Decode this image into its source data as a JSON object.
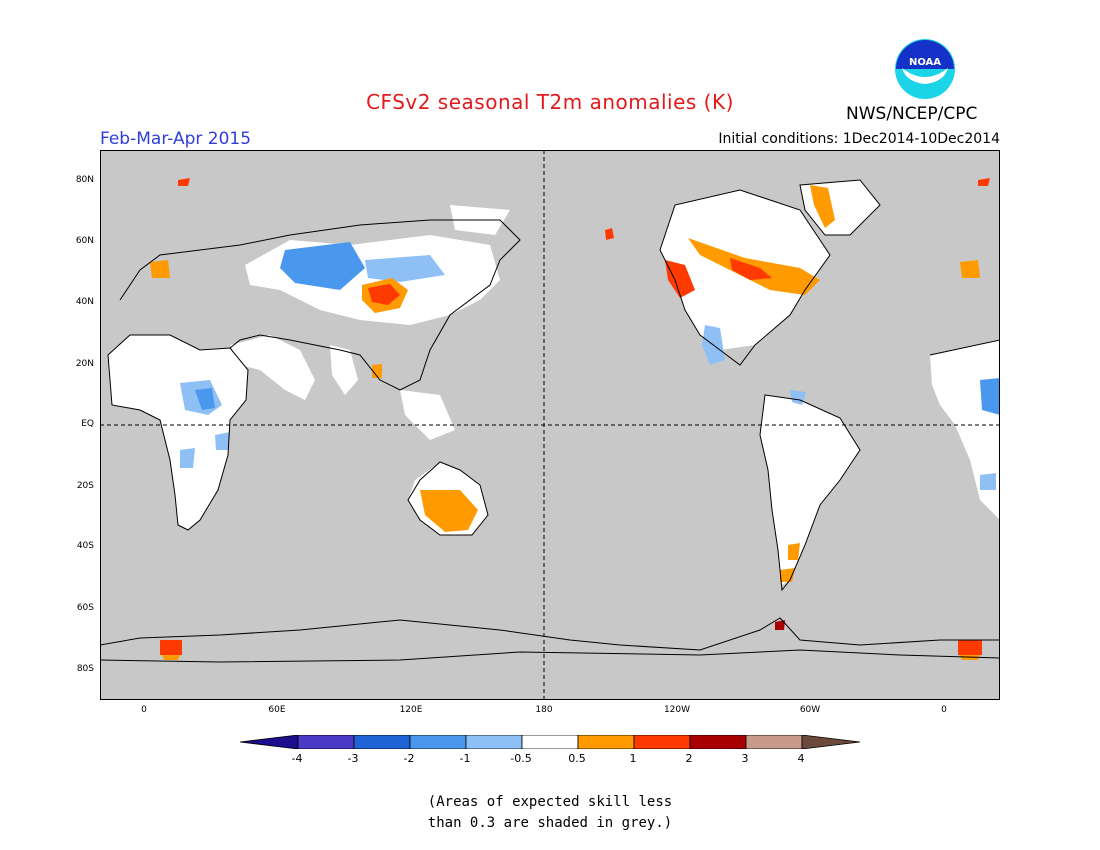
{
  "header": {
    "title": "CFSv2 seasonal T2m anomalies (K)",
    "period": "Feb-Mar-Apr 2015",
    "initial_conditions": "Initial conditions: 1Dec2014-10Dec2014",
    "agency": "NWS/NCEP/CPC",
    "logo_text": "NOAA"
  },
  "axes": {
    "lat_ticks": [
      "80N",
      "60N",
      "40N",
      "20N",
      "EQ",
      "20S",
      "40S",
      "60S",
      "80S"
    ],
    "lon_ticks": [
      "0",
      "60E",
      "120E",
      "180",
      "120W",
      "60W",
      "0"
    ]
  },
  "colorbar": {
    "labels": [
      "-4",
      "-3",
      "-2",
      "-1",
      "-0.5",
      "0.5",
      "1",
      "2",
      "3",
      "4"
    ],
    "colors": [
      "#1d0d8f",
      "#4a3cc6",
      "#1f63d6",
      "#4a98ee",
      "#8fc0f5",
      "#ffffff",
      "#ff9a00",
      "#ff3a00",
      "#a80000",
      "#c89a8a",
      "#6b4a3c"
    ]
  },
  "map_colors": {
    "ocean_grey": "#c8c8c8",
    "no_signal": "#ffffff",
    "warm_light": "#ff9a00",
    "warm_strong": "#ff3a00",
    "warm_extreme": "#a80000",
    "cool_light": "#8fc0f5",
    "cool_medium": "#4a98ee"
  },
  "note": {
    "line1": "(Areas of expected skill less",
    "line2": "than 0.3 are shaded in grey.)"
  }
}
